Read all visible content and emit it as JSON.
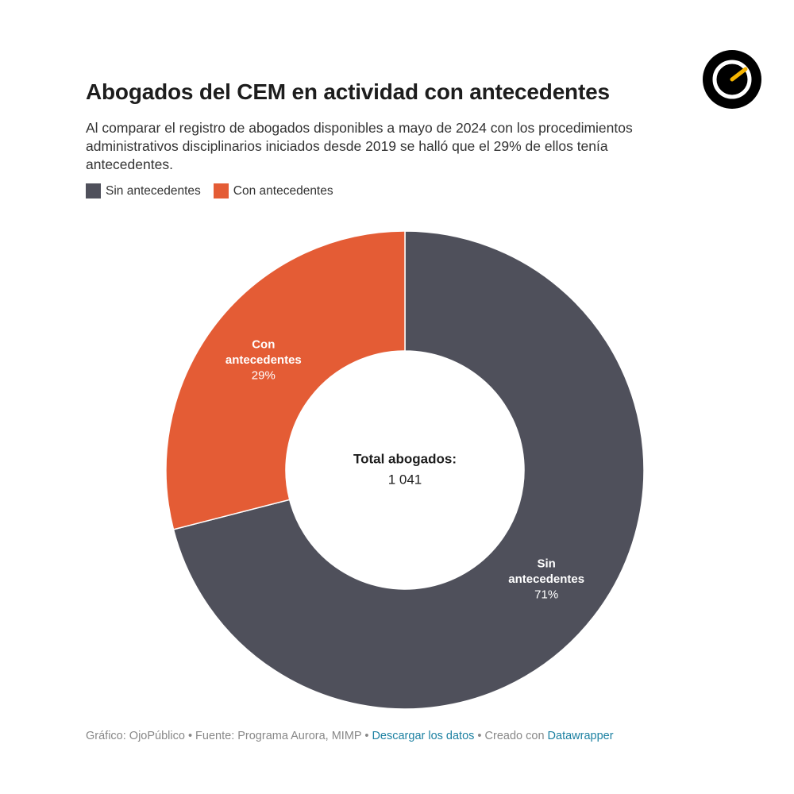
{
  "header": {
    "title": "Abogados del CEM en actividad con antecedentes",
    "subtitle": "Al comparar el registro de abogados disponibles a mayo de 2024 con los procedimientos administrativos disciplinarios iniciados desde 2019 se halló que el 29% de ellos tenía antecedentes."
  },
  "logo": {
    "icon": "ojopublico-eye-logo"
  },
  "legend": [
    {
      "label": "Sin antecedentes",
      "color": "#4f505b"
    },
    {
      "label": "Con antecedentes",
      "color": "#e45c35"
    }
  ],
  "chart_data": {
    "type": "pie",
    "variant": "donut",
    "categories": [
      "Sin antecedentes",
      "Con antecedentes"
    ],
    "values": [
      71,
      29
    ],
    "value_unit": "%",
    "colors": [
      "#4f505b",
      "#e45c35"
    ],
    "slice_labels": [
      {
        "name_lines": [
          "Sin",
          "antecedentes"
        ],
        "value": "71%"
      },
      {
        "name_lines": [
          "Con",
          "antecedentes"
        ],
        "value": "29%"
      }
    ],
    "center_label": "Total abogados:",
    "center_value": "1 041",
    "legend_position": "top-left"
  },
  "footer": {
    "credit": "Gráfico: OjoPúblico • Fuente: Programa Aurora, MIMP • ",
    "download_link": "Descargar los datos",
    "created_with": " • Creado con ",
    "datawrapper_link": "Datawrapper"
  }
}
